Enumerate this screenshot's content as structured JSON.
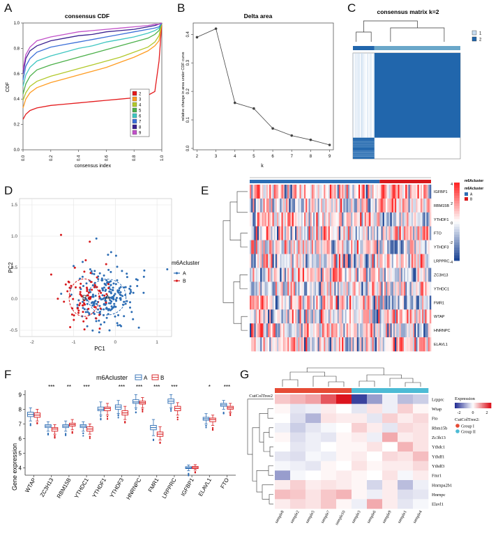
{
  "panels": {
    "A": "A",
    "B": "B",
    "C": "C",
    "D": "D",
    "E": "E",
    "F": "F",
    "G": "G"
  },
  "chart_data": [
    {
      "id": "A",
      "type": "line",
      "title": "consensus CDF",
      "xlabel": "consensus index",
      "ylabel": "CDF",
      "xlim": [
        0,
        1
      ],
      "ylim": [
        0,
        1
      ],
      "x_ticks": [
        "0.0",
        "0.2",
        "0.4",
        "0.6",
        "0.8",
        "1.0"
      ],
      "y_ticks": [
        "0.0",
        "0.2",
        "0.4",
        "0.6",
        "0.8",
        "1.0"
      ],
      "legend_position": "bottom-right",
      "x": [
        0,
        0.02,
        0.05,
        0.1,
        0.2,
        0.3,
        0.4,
        0.5,
        0.6,
        0.7,
        0.8,
        0.9,
        0.95,
        0.98,
        1.0
      ],
      "series": [
        {
          "name": "2",
          "color": "#e41a1c",
          "values": [
            0.24,
            0.28,
            0.31,
            0.33,
            0.35,
            0.36,
            0.37,
            0.38,
            0.39,
            0.4,
            0.41,
            0.43,
            0.46,
            0.7,
            1.0
          ]
        },
        {
          "name": "3",
          "color": "#ff9c22",
          "values": [
            0.33,
            0.4,
            0.45,
            0.49,
            0.53,
            0.56,
            0.59,
            0.62,
            0.65,
            0.69,
            0.73,
            0.78,
            0.82,
            0.86,
            1.0
          ]
        },
        {
          "name": "4",
          "color": "#b2c92b",
          "values": [
            0.39,
            0.45,
            0.5,
            0.54,
            0.58,
            0.61,
            0.64,
            0.67,
            0.7,
            0.73,
            0.77,
            0.81,
            0.85,
            0.9,
            1.0
          ]
        },
        {
          "name": "5",
          "color": "#4cb04a",
          "values": [
            0.44,
            0.52,
            0.58,
            0.63,
            0.67,
            0.7,
            0.73,
            0.76,
            0.79,
            0.82,
            0.85,
            0.88,
            0.91,
            0.94,
            1.0
          ]
        },
        {
          "name": "6",
          "color": "#3ec6c1",
          "values": [
            0.5,
            0.59,
            0.65,
            0.7,
            0.74,
            0.77,
            0.8,
            0.82,
            0.85,
            0.87,
            0.89,
            0.92,
            0.94,
            0.96,
            1.0
          ]
        },
        {
          "name": "7",
          "color": "#3b6fd8",
          "values": [
            0.55,
            0.66,
            0.72,
            0.77,
            0.81,
            0.83,
            0.85,
            0.87,
            0.89,
            0.91,
            0.93,
            0.95,
            0.96,
            0.97,
            1.0
          ]
        },
        {
          "name": "8",
          "color": "#3a1f8f",
          "values": [
            0.6,
            0.72,
            0.78,
            0.82,
            0.86,
            0.88,
            0.9,
            0.91,
            0.93,
            0.94,
            0.95,
            0.97,
            0.98,
            0.99,
            1.0
          ]
        },
        {
          "name": "9",
          "color": "#c151c9",
          "values": [
            0.63,
            0.75,
            0.81,
            0.86,
            0.89,
            0.91,
            0.93,
            0.94,
            0.95,
            0.96,
            0.97,
            0.98,
            0.99,
            0.99,
            1.0
          ]
        }
      ]
    },
    {
      "id": "B",
      "type": "line",
      "title": "Delta area",
      "xlabel": "k",
      "ylabel": "relative change in area under CDF curve",
      "x": [
        2,
        3,
        4,
        5,
        6,
        7,
        8,
        9
      ],
      "values": [
        0.39,
        0.42,
        0.16,
        0.14,
        0.07,
        0.045,
        0.03,
        0.012
      ],
      "ylim": [
        0,
        0.4
      ],
      "y_ticks": [
        "0.0",
        "0.1",
        "0.2",
        "0.3",
        "0.4"
      ]
    },
    {
      "id": "C",
      "type": "heatmap",
      "title": "consensus matrix k=2",
      "legend": [
        {
          "name": "1",
          "color": "#c6dbef"
        },
        {
          "name": "2",
          "color": "#2166ac"
        }
      ],
      "cluster_fractions": [
        0.2,
        0.8
      ]
    },
    {
      "id": "D",
      "type": "scatter",
      "xlabel": "PC1",
      "ylabel": "PC2",
      "xlim": [
        -2.3,
        1.35
      ],
      "ylim": [
        -0.6,
        1.6
      ],
      "x_ticks": [
        -2,
        -1,
        0,
        1
      ],
      "y_ticks": [
        -0.5,
        0.0,
        0.5,
        1.0,
        1.5
      ],
      "legend_title": "m6Acluster",
      "groups": [
        {
          "name": "A",
          "color": "#2d6db4",
          "center": [
            -0.2,
            0.03
          ],
          "spread": [
            0.38,
            0.22
          ],
          "count": 210
        },
        {
          "name": "B",
          "color": "#d7191c",
          "center": [
            -0.75,
            0.02
          ],
          "spread": [
            0.3,
            0.23
          ],
          "count": 75
        }
      ],
      "center_labels": [
        "A",
        "B"
      ]
    },
    {
      "id": "E",
      "type": "heatmap",
      "rows": [
        "IGFBP1",
        "RBM15B",
        "YTHDF1",
        "FTO",
        "YTHDF3",
        "LRPPRC",
        "ZC3H13",
        "YTHDC1",
        "FMR1",
        "WTAP",
        "HNRNPC",
        "ELAVL1"
      ],
      "annotation_title": "m6Acluster",
      "annotation": [
        {
          "name": "A",
          "color": "#2d6db4",
          "fraction": 0.72
        },
        {
          "name": "B",
          "color": "#d7191c",
          "fraction": 0.28
        }
      ],
      "color_scale_ticks": [
        "4",
        "2",
        "0",
        "-2",
        "-4"
      ]
    },
    {
      "id": "F",
      "type": "box",
      "xlabel": "",
      "ylabel": "Gene expression",
      "ylim": [
        3.5,
        9.3
      ],
      "y_ticks": [
        4,
        5,
        6,
        7,
        8,
        9
      ],
      "legend_title": "m6Acluster",
      "legend": [
        {
          "name": "A",
          "color": "#2d6db4"
        },
        {
          "name": "B",
          "color": "#d7191c"
        }
      ],
      "categories": [
        "WTAP",
        "ZC3H13",
        "RBM15B",
        "YTHDC1",
        "YTHDF1",
        "YTHDF3",
        "HNRNPC",
        "FMR1",
        "LRPPRC",
        "IGFBP1",
        "ELAVL1",
        "FTO"
      ],
      "significance": [
        "",
        "***",
        "**",
        "***",
        "",
        "***",
        "***",
        "***",
        "***",
        "",
        "*",
        "***"
      ],
      "series": [
        {
          "name": "A",
          "boxes": [
            [
              7.2,
              7.5,
              7.65,
              7.8,
              8.1
            ],
            [
              6.5,
              6.75,
              6.85,
              6.95,
              7.15
            ],
            [
              6.5,
              6.75,
              6.85,
              6.95,
              7.2
            ],
            [
              6.5,
              6.75,
              6.85,
              6.95,
              7.15
            ],
            [
              7.6,
              7.9,
              8.0,
              8.15,
              8.5
            ],
            [
              7.7,
              8.0,
              8.15,
              8.3,
              8.6
            ],
            [
              8.1,
              8.4,
              8.5,
              8.65,
              9.0
            ],
            [
              6.2,
              6.6,
              6.75,
              6.9,
              7.3
            ],
            [
              8.1,
              8.4,
              8.55,
              8.7,
              9.0
            ],
            [
              3.8,
              3.95,
              4.0,
              4.08,
              4.2
            ],
            [
              7.0,
              7.25,
              7.35,
              7.45,
              7.7
            ],
            [
              8.0,
              8.2,
              8.3,
              8.4,
              8.6
            ]
          ]
        },
        {
          "name": "B",
          "boxes": [
            [
              7.2,
              7.45,
              7.6,
              7.75,
              8.0
            ],
            [
              6.3,
              6.5,
              6.65,
              6.75,
              6.95
            ],
            [
              6.6,
              6.85,
              6.95,
              7.05,
              7.3
            ],
            [
              6.3,
              6.5,
              6.65,
              6.8,
              7.0
            ],
            [
              7.6,
              7.9,
              8.05,
              8.15,
              8.4
            ],
            [
              7.3,
              7.6,
              7.75,
              7.9,
              8.2
            ],
            [
              8.1,
              8.35,
              8.45,
              8.55,
              8.8
            ],
            [
              5.9,
              6.15,
              6.3,
              6.45,
              6.8
            ],
            [
              7.6,
              7.9,
              8.05,
              8.2,
              8.45
            ],
            [
              3.85,
              3.95,
              4.02,
              4.1,
              4.22
            ],
            [
              6.9,
              7.15,
              7.3,
              7.4,
              7.6
            ],
            [
              7.8,
              8.0,
              8.1,
              8.2,
              8.4
            ]
          ]
        }
      ]
    },
    {
      "id": "G",
      "type": "heatmap",
      "annotation_title": "CutColTree2",
      "legend_title": "Expression",
      "legend_ticks": [
        "-2",
        "0",
        "2"
      ],
      "groups_title": "CutColTree2:",
      "groups": [
        {
          "name": "Group I",
          "color": "#e64b35"
        },
        {
          "name": "Group II",
          "color": "#4dbbd5"
        }
      ],
      "rows": [
        "Lrpprc",
        "Wtap",
        "Fto",
        "Rbm15b",
        "Zc3h13",
        "Ythdc1",
        "Ythdf1",
        "Ythdf3",
        "Fmr1",
        "Hnrnpa2b1",
        "Hnrnpc",
        "Elavl1"
      ],
      "columns": [
        "sample8",
        "sample2",
        "sample5",
        "sample7",
        "sample10",
        "sample3",
        "sample6",
        "sample9",
        "sample1",
        "sample4"
      ],
      "values": [
        [
          0.6,
          0.8,
          1.0,
          1.8,
          2.6,
          -2.3,
          -1.2,
          -0.2,
          -0.8,
          -0.6
        ],
        [
          0.1,
          -0.3,
          -0.2,
          0.2,
          0.0,
          -0.3,
          0.3,
          -0.2,
          0.5,
          0.1
        ],
        [
          0.0,
          -0.4,
          -0.9,
          0.3,
          0.2,
          0.2,
          -0.3,
          0.5,
          0.2,
          0.4
        ],
        [
          -0.2,
          -0.6,
          -0.3,
          -0.1,
          0.0,
          0.5,
          0.2,
          -0.3,
          0.4,
          0.3
        ],
        [
          0.1,
          -0.4,
          -0.2,
          -0.3,
          0.1,
          0.2,
          -0.2,
          0.9,
          0.2,
          0.3
        ],
        [
          0.0,
          -0.3,
          -0.2,
          0.0,
          0.1,
          0.1,
          0.3,
          0.0,
          0.8,
          0.3
        ],
        [
          -0.3,
          -0.4,
          -0.1,
          -0.2,
          0.1,
          0.2,
          0.0,
          0.4,
          0.3,
          0.7
        ],
        [
          -0.1,
          -0.2,
          -0.3,
          0.1,
          0.0,
          0.3,
          0.1,
          0.2,
          0.2,
          0.4
        ],
        [
          -1.2,
          -0.1,
          0.0,
          0.1,
          0.2,
          0.1,
          0.0,
          0.3,
          -0.1,
          0.2
        ],
        [
          0.2,
          0.5,
          0.2,
          0.3,
          0.2,
          0.1,
          -0.5,
          0.2,
          -0.8,
          -0.2
        ],
        [
          0.7,
          0.6,
          0.3,
          0.6,
          0.8,
          0.1,
          -0.2,
          0.2,
          -0.4,
          -0.3
        ],
        [
          0.2,
          0.4,
          0.3,
          0.6,
          0.1,
          -0.2,
          0.9,
          0.2,
          -0.3,
          -0.1
        ]
      ]
    }
  ]
}
